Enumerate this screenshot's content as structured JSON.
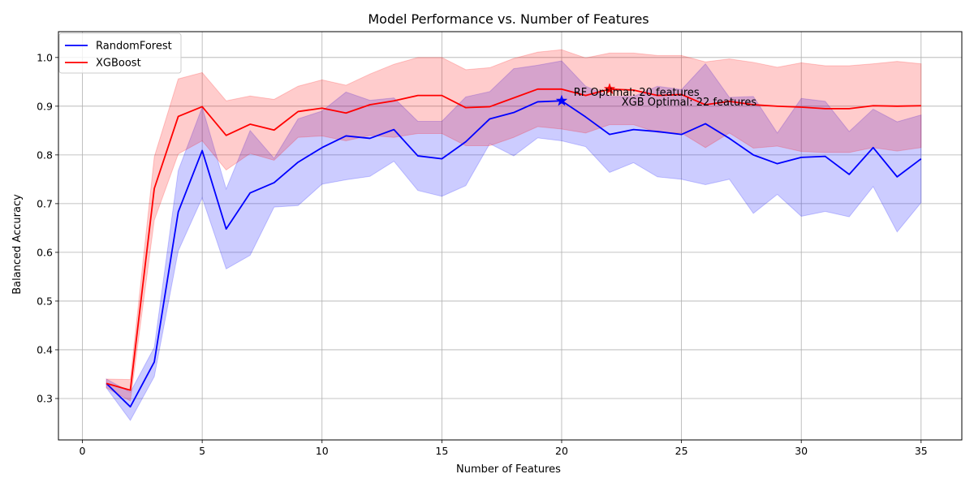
{
  "chart_data": {
    "type": "line",
    "title": "Model Performance vs. Number of Features",
    "xlabel": "Number of Features",
    "ylabel": "Balanced Accuracy",
    "xlim": [
      -1,
      36.7
    ],
    "ylim": [
      0.215,
      1.053
    ],
    "xticks": [
      0,
      5,
      10,
      15,
      20,
      25,
      30,
      35
    ],
    "yticks": [
      0.3,
      0.4,
      0.5,
      0.6,
      0.7,
      0.8,
      0.9,
      1.0
    ],
    "xtick_labels": [
      "0",
      "5",
      "10",
      "15",
      "20",
      "25",
      "30",
      "35"
    ],
    "ytick_labels": [
      "0.3",
      "0.4",
      "0.5",
      "0.6",
      "0.7",
      "0.8",
      "0.9",
      "1.0"
    ],
    "grid": true,
    "legend_position": "top-left",
    "x": [
      1,
      2,
      3,
      4,
      5,
      6,
      7,
      8,
      9,
      10,
      11,
      12,
      13,
      14,
      15,
      16,
      17,
      18,
      19,
      20,
      21,
      22,
      23,
      24,
      25,
      26,
      27,
      28,
      29,
      30,
      31,
      32,
      33,
      34,
      35
    ],
    "series": [
      {
        "name": "RandomForest",
        "color": "#0000ff",
        "band_color": "#0000ff",
        "values": [
          0.331,
          0.283,
          0.375,
          0.683,
          0.809,
          0.648,
          0.722,
          0.743,
          0.785,
          0.815,
          0.839,
          0.834,
          0.852,
          0.798,
          0.792,
          0.827,
          0.874,
          0.887,
          0.909,
          0.911,
          0.878,
          0.842,
          0.852,
          0.848,
          0.842,
          0.864,
          0.834,
          0.8,
          0.782,
          0.795,
          0.797,
          0.76,
          0.815,
          0.755,
          0.792
        ],
        "lower": [
          0.322,
          0.255,
          0.345,
          0.603,
          0.712,
          0.566,
          0.594,
          0.693,
          0.696,
          0.74,
          0.749,
          0.756,
          0.787,
          0.727,
          0.715,
          0.737,
          0.823,
          0.798,
          0.835,
          0.829,
          0.817,
          0.764,
          0.784,
          0.755,
          0.75,
          0.739,
          0.75,
          0.68,
          0.719,
          0.674,
          0.684,
          0.673,
          0.735,
          0.642,
          0.702
        ],
        "upper": [
          0.34,
          0.313,
          0.405,
          0.768,
          0.898,
          0.73,
          0.85,
          0.793,
          0.874,
          0.89,
          0.929,
          0.912,
          0.917,
          0.869,
          0.869,
          0.919,
          0.93,
          0.977,
          0.984,
          0.993,
          0.941,
          0.92,
          0.92,
          0.941,
          0.934,
          0.987,
          0.918,
          0.92,
          0.845,
          0.916,
          0.91,
          0.848,
          0.894,
          0.868,
          0.882
        ]
      },
      {
        "name": "XGBoost",
        "color": "#ff0000",
        "band_color": "#ff0000",
        "values": [
          0.331,
          0.317,
          0.731,
          0.879,
          0.899,
          0.84,
          0.863,
          0.851,
          0.889,
          0.896,
          0.886,
          0.903,
          0.911,
          0.922,
          0.922,
          0.897,
          0.899,
          0.917,
          0.935,
          0.935,
          0.922,
          0.935,
          0.933,
          0.922,
          0.924,
          0.903,
          0.91,
          0.903,
          0.9,
          0.898,
          0.895,
          0.895,
          0.901,
          0.9,
          0.901
        ],
        "lower": [
          0.322,
          0.295,
          0.666,
          0.802,
          0.829,
          0.769,
          0.803,
          0.789,
          0.836,
          0.839,
          0.829,
          0.84,
          0.836,
          0.844,
          0.844,
          0.819,
          0.819,
          0.836,
          0.858,
          0.853,
          0.845,
          0.862,
          0.862,
          0.846,
          0.845,
          0.815,
          0.845,
          0.814,
          0.818,
          0.807,
          0.805,
          0.805,
          0.815,
          0.808,
          0.815
        ],
        "upper": [
          0.34,
          0.339,
          0.796,
          0.956,
          0.969,
          0.911,
          0.921,
          0.914,
          0.941,
          0.954,
          0.943,
          0.966,
          0.986,
          1.0,
          1.0,
          0.975,
          0.979,
          0.998,
          1.011,
          1.016,
          0.999,
          1.009,
          1.009,
          1.004,
          1.004,
          0.991,
          0.997,
          0.99,
          0.98,
          0.989,
          0.983,
          0.983,
          0.987,
          0.992,
          0.987
        ]
      }
    ],
    "annotations": [
      {
        "text": "RF Optimal: 20 features",
        "x": 20,
        "y": 0.911,
        "color": "#0000ff",
        "text_x": 20.5,
        "text_y": 0.93
      },
      {
        "text": "XGB Optimal: 22 features",
        "x": 22,
        "y": 0.935,
        "color": "#ff0000",
        "text_x": 22.5,
        "text_y": 0.91
      }
    ]
  }
}
